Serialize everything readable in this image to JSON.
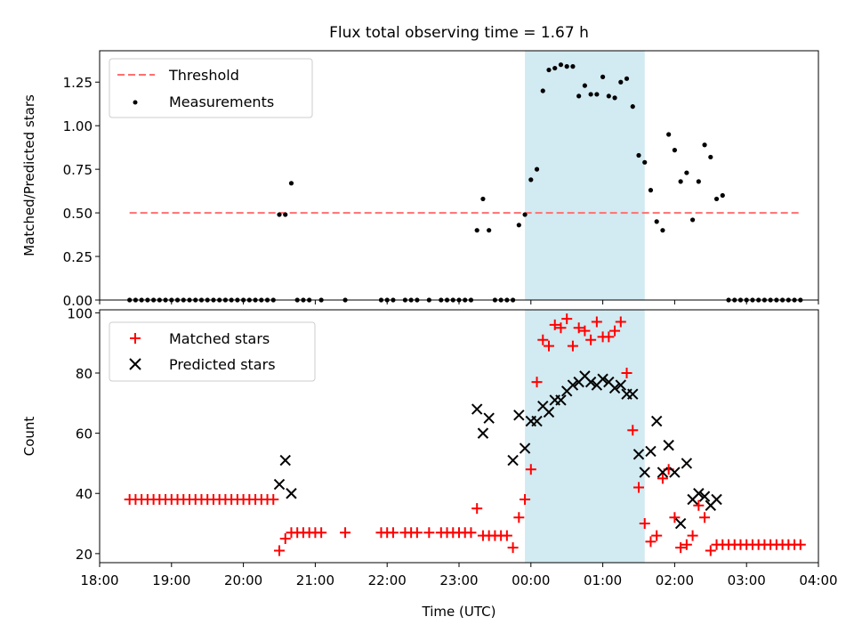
{
  "title": "Flux total observing time = 1.67 h",
  "colors": {
    "threshold": "#ff6f6f",
    "measurement": "#000000",
    "matched": "#ff0000",
    "predicted": "#000000",
    "highlight": "#add8e6"
  },
  "chart_data": [
    {
      "type": "scatter",
      "panel": "top",
      "title": "Flux total observing time = 1.67 h",
      "xlabel": "",
      "ylabel": "Matched/Predicted stars",
      "xlim": [
        "18:00",
        "04:00"
      ],
      "ylim": [
        0,
        1.43
      ],
      "x_ticks": [
        "18:00",
        "19:00",
        "20:00",
        "21:00",
        "22:00",
        "23:00",
        "00:00",
        "01:00",
        "02:00",
        "03:00",
        "04:00"
      ],
      "y_ticks": [
        "0.00",
        "0.25",
        "0.50",
        "0.75",
        "1.00",
        "1.25"
      ],
      "y_tick_values": [
        0,
        0.25,
        0.5,
        0.75,
        1.0,
        1.25
      ],
      "legend": "upper-left",
      "highlight_span": [
        "23:55",
        "01:35"
      ],
      "threshold": {
        "name": "Threshold",
        "value": 0.5,
        "x": [
          "18:25",
          "03:45"
        ]
      },
      "series": [
        {
          "name": "Measurements",
          "marker": "dot",
          "points": [
            [
              "18:25",
              0
            ],
            [
              "18:30",
              0
            ],
            [
              "18:35",
              0
            ],
            [
              "18:40",
              0
            ],
            [
              "18:45",
              0
            ],
            [
              "18:50",
              0
            ],
            [
              "18:55",
              0
            ],
            [
              "19:00",
              0
            ],
            [
              "19:05",
              0
            ],
            [
              "19:10",
              0
            ],
            [
              "19:15",
              0
            ],
            [
              "19:20",
              0
            ],
            [
              "19:25",
              0
            ],
            [
              "19:30",
              0
            ],
            [
              "19:35",
              0
            ],
            [
              "19:40",
              0
            ],
            [
              "19:45",
              0
            ],
            [
              "19:50",
              0
            ],
            [
              "19:55",
              0
            ],
            [
              "20:00",
              0
            ],
            [
              "20:05",
              0
            ],
            [
              "20:10",
              0
            ],
            [
              "20:15",
              0
            ],
            [
              "20:20",
              0
            ],
            [
              "20:25",
              0
            ],
            [
              "20:30",
              0.49
            ],
            [
              "20:35",
              0.49
            ],
            [
              "20:40",
              0.67
            ],
            [
              "20:45",
              0
            ],
            [
              "20:50",
              0
            ],
            [
              "20:55",
              0
            ],
            [
              "21:05",
              0
            ],
            [
              "21:25",
              0
            ],
            [
              "21:55",
              0
            ],
            [
              "22:00",
              0
            ],
            [
              "22:05",
              0
            ],
            [
              "22:15",
              0
            ],
            [
              "22:20",
              0
            ],
            [
              "22:25",
              0
            ],
            [
              "22:35",
              0
            ],
            [
              "22:45",
              0
            ],
            [
              "22:50",
              0
            ],
            [
              "22:55",
              0
            ],
            [
              "23:00",
              0
            ],
            [
              "23:05",
              0
            ],
            [
              "23:10",
              0
            ],
            [
              "23:15",
              0.4
            ],
            [
              "23:20",
              0.58
            ],
            [
              "23:25",
              0.4
            ],
            [
              "23:30",
              0
            ],
            [
              "23:35",
              0
            ],
            [
              "23:40",
              0
            ],
            [
              "23:45",
              0
            ],
            [
              "23:50",
              0.43
            ],
            [
              "23:55",
              0.49
            ],
            [
              "00:00",
              0.69
            ],
            [
              "00:05",
              0.75
            ],
            [
              "00:10",
              1.2
            ],
            [
              "00:15",
              1.32
            ],
            [
              "00:20",
              1.33
            ],
            [
              "00:25",
              1.35
            ],
            [
              "00:30",
              1.34
            ],
            [
              "00:35",
              1.34
            ],
            [
              "00:40",
              1.17
            ],
            [
              "00:45",
              1.23
            ],
            [
              "00:50",
              1.18
            ],
            [
              "00:55",
              1.18
            ],
            [
              "01:00",
              1.28
            ],
            [
              "01:05",
              1.17
            ],
            [
              "01:10",
              1.16
            ],
            [
              "01:15",
              1.25
            ],
            [
              "01:20",
              1.27
            ],
            [
              "01:25",
              1.11
            ],
            [
              "01:30",
              0.83
            ],
            [
              "01:35",
              0.79
            ],
            [
              "01:40",
              0.63
            ],
            [
              "01:45",
              0.45
            ],
            [
              "01:50",
              0.4
            ],
            [
              "01:55",
              0.95
            ],
            [
              "02:00",
              0.86
            ],
            [
              "02:05",
              0.68
            ],
            [
              "02:10",
              0.73
            ],
            [
              "02:15",
              0.46
            ],
            [
              "02:20",
              0.68
            ],
            [
              "02:25",
              0.89
            ],
            [
              "02:30",
              0.82
            ],
            [
              "02:35",
              0.58
            ],
            [
              "02:40",
              0.6
            ],
            [
              "02:45",
              0
            ],
            [
              "02:50",
              0
            ],
            [
              "02:55",
              0
            ],
            [
              "03:00",
              0
            ],
            [
              "03:05",
              0
            ],
            [
              "03:10",
              0
            ],
            [
              "03:15",
              0
            ],
            [
              "03:20",
              0
            ],
            [
              "03:25",
              0
            ],
            [
              "03:30",
              0
            ],
            [
              "03:35",
              0
            ],
            [
              "03:40",
              0
            ],
            [
              "03:45",
              0
            ]
          ]
        }
      ]
    },
    {
      "type": "scatter",
      "panel": "bottom",
      "xlabel": "Time (UTC)",
      "ylabel": "Count",
      "xlim": [
        "18:00",
        "04:00"
      ],
      "ylim": [
        17,
        101
      ],
      "x_ticks": [
        "18:00",
        "19:00",
        "20:00",
        "21:00",
        "22:00",
        "23:00",
        "00:00",
        "01:00",
        "02:00",
        "03:00",
        "04:00"
      ],
      "y_ticks": [
        "20",
        "40",
        "60",
        "80",
        "100"
      ],
      "y_tick_values": [
        20,
        40,
        60,
        80,
        100
      ],
      "legend": "upper-left",
      "highlight_span": [
        "23:55",
        "01:35"
      ],
      "series": [
        {
          "name": "Matched stars",
          "marker": "plus",
          "points": [
            [
              "18:25",
              38
            ],
            [
              "18:30",
              38
            ],
            [
              "18:35",
              38
            ],
            [
              "18:40",
              38
            ],
            [
              "18:45",
              38
            ],
            [
              "18:50",
              38
            ],
            [
              "18:55",
              38
            ],
            [
              "19:00",
              38
            ],
            [
              "19:05",
              38
            ],
            [
              "19:10",
              38
            ],
            [
              "19:15",
              38
            ],
            [
              "19:20",
              38
            ],
            [
              "19:25",
              38
            ],
            [
              "19:30",
              38
            ],
            [
              "19:35",
              38
            ],
            [
              "19:40",
              38
            ],
            [
              "19:45",
              38
            ],
            [
              "19:50",
              38
            ],
            [
              "19:55",
              38
            ],
            [
              "20:00",
              38
            ],
            [
              "20:05",
              38
            ],
            [
              "20:10",
              38
            ],
            [
              "20:15",
              38
            ],
            [
              "20:20",
              38
            ],
            [
              "20:25",
              38
            ],
            [
              "20:30",
              21
            ],
            [
              "20:35",
              25
            ],
            [
              "20:40",
              27
            ],
            [
              "20:45",
              27
            ],
            [
              "20:50",
              27
            ],
            [
              "20:55",
              27
            ],
            [
              "21:00",
              27
            ],
            [
              "21:05",
              27
            ],
            [
              "21:25",
              27
            ],
            [
              "21:55",
              27
            ],
            [
              "22:00",
              27
            ],
            [
              "22:05",
              27
            ],
            [
              "22:15",
              27
            ],
            [
              "22:20",
              27
            ],
            [
              "22:25",
              27
            ],
            [
              "22:35",
              27
            ],
            [
              "22:45",
              27
            ],
            [
              "22:50",
              27
            ],
            [
              "22:55",
              27
            ],
            [
              "23:00",
              27
            ],
            [
              "23:05",
              27
            ],
            [
              "23:10",
              27
            ],
            [
              "23:15",
              35
            ],
            [
              "23:20",
              26
            ],
            [
              "23:25",
              26
            ],
            [
              "23:30",
              26
            ],
            [
              "23:35",
              26
            ],
            [
              "23:40",
              26
            ],
            [
              "23:45",
              22
            ],
            [
              "23:50",
              32
            ],
            [
              "23:55",
              38
            ],
            [
              "00:00",
              48
            ],
            [
              "00:05",
              77
            ],
            [
              "00:10",
              91
            ],
            [
              "00:15",
              89
            ],
            [
              "00:20",
              96
            ],
            [
              "00:25",
              95
            ],
            [
              "00:30",
              98
            ],
            [
              "00:35",
              89
            ],
            [
              "00:40",
              95
            ],
            [
              "00:45",
              94
            ],
            [
              "00:50",
              91
            ],
            [
              "00:55",
              97
            ],
            [
              "01:00",
              92
            ],
            [
              "01:05",
              92
            ],
            [
              "01:10",
              94
            ],
            [
              "01:15",
              97
            ],
            [
              "01:20",
              80
            ],
            [
              "01:25",
              61
            ],
            [
              "01:30",
              42
            ],
            [
              "01:35",
              30
            ],
            [
              "01:40",
              24
            ],
            [
              "01:45",
              26
            ],
            [
              "01:50",
              45
            ],
            [
              "01:55",
              48
            ],
            [
              "02:00",
              32
            ],
            [
              "02:05",
              22
            ],
            [
              "02:10",
              23
            ],
            [
              "02:15",
              26
            ],
            [
              "02:20",
              36
            ],
            [
              "02:25",
              32
            ],
            [
              "02:30",
              21
            ],
            [
              "02:35",
              23
            ],
            [
              "02:40",
              23
            ],
            [
              "02:45",
              23
            ],
            [
              "02:50",
              23
            ],
            [
              "02:55",
              23
            ],
            [
              "03:00",
              23
            ],
            [
              "03:05",
              23
            ],
            [
              "03:10",
              23
            ],
            [
              "03:15",
              23
            ],
            [
              "03:20",
              23
            ],
            [
              "03:25",
              23
            ],
            [
              "03:30",
              23
            ],
            [
              "03:35",
              23
            ],
            [
              "03:40",
              23
            ],
            [
              "03:45",
              23
            ]
          ]
        },
        {
          "name": "Predicted stars",
          "marker": "x",
          "points": [
            [
              "20:30",
              43
            ],
            [
              "20:35",
              51
            ],
            [
              "20:40",
              40
            ],
            [
              "23:15",
              68
            ],
            [
              "23:20",
              60
            ],
            [
              "23:25",
              65
            ],
            [
              "23:45",
              51
            ],
            [
              "23:50",
              66
            ],
            [
              "23:55",
              55
            ],
            [
              "00:00",
              64
            ],
            [
              "00:05",
              64
            ],
            [
              "00:10",
              69
            ],
            [
              "00:15",
              67
            ],
            [
              "00:20",
              71
            ],
            [
              "00:25",
              71
            ],
            [
              "00:30",
              74
            ],
            [
              "00:35",
              76
            ],
            [
              "00:40",
              77
            ],
            [
              "00:45",
              79
            ],
            [
              "00:50",
              77
            ],
            [
              "00:55",
              76
            ],
            [
              "01:00",
              78
            ],
            [
              "01:05",
              77
            ],
            [
              "01:10",
              75
            ],
            [
              "01:15",
              76
            ],
            [
              "01:20",
              73
            ],
            [
              "01:25",
              73
            ],
            [
              "01:30",
              53
            ],
            [
              "01:35",
              47
            ],
            [
              "01:40",
              54
            ],
            [
              "01:45",
              64
            ],
            [
              "01:50",
              47
            ],
            [
              "01:55",
              56
            ],
            [
              "02:00",
              47
            ],
            [
              "02:05",
              30
            ],
            [
              "02:10",
              50
            ],
            [
              "02:15",
              38
            ],
            [
              "02:20",
              40
            ],
            [
              "02:25",
              39
            ],
            [
              "02:30",
              36
            ],
            [
              "02:35",
              38
            ]
          ]
        }
      ]
    }
  ]
}
